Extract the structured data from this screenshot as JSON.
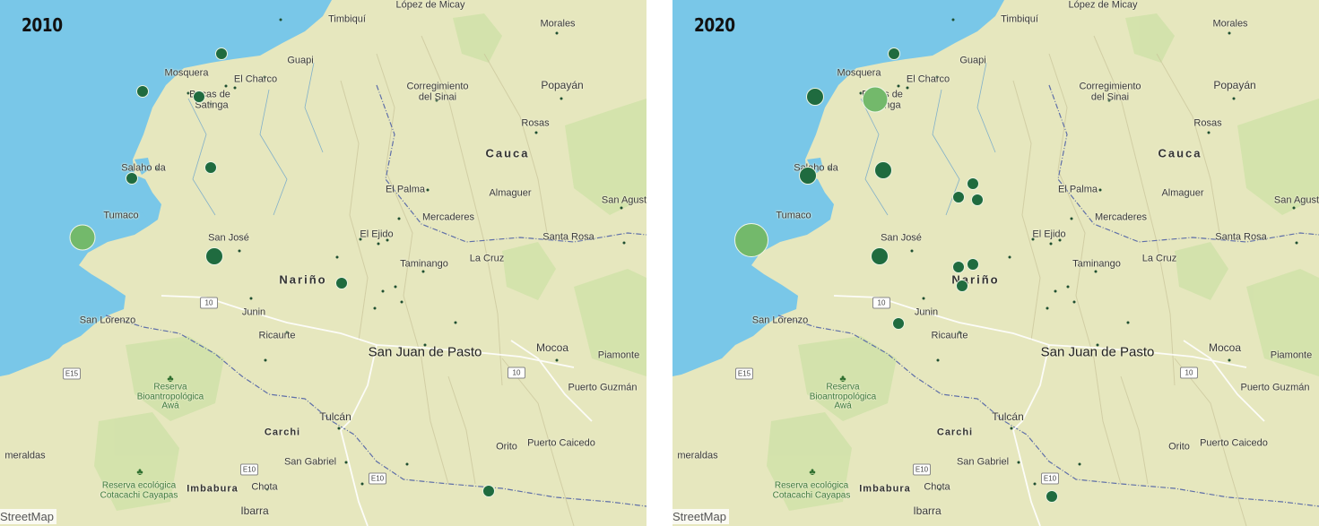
{
  "panels": [
    {
      "year": "2010",
      "attribution": "StreetMap",
      "bubbles": [
        {
          "lon": -78.16,
          "lat": 2.38,
          "size": 1,
          "tone": "dark"
        },
        {
          "lon": -78.37,
          "lat": 2.24,
          "size": 1,
          "tone": "dark"
        },
        {
          "lon": -78.22,
          "lat": 2.22,
          "size": 1,
          "tone": "dark"
        },
        {
          "lon": -78.4,
          "lat": 1.92,
          "size": 1,
          "tone": "dark"
        },
        {
          "lon": -78.19,
          "lat": 1.96,
          "size": 1,
          "tone": "dark"
        },
        {
          "lon": -78.53,
          "lat": 1.7,
          "size": 3,
          "tone": "light"
        },
        {
          "lon": -78.18,
          "lat": 1.63,
          "size": 2,
          "tone": "dark"
        },
        {
          "lon": -77.84,
          "lat": 1.53,
          "size": 1,
          "tone": "dark"
        },
        {
          "lon": -77.45,
          "lat": 0.76,
          "size": 1,
          "tone": "dark"
        }
      ]
    },
    {
      "year": "2020",
      "attribution": "StreetMap",
      "bubbles": [
        {
          "lon": -78.16,
          "lat": 2.38,
          "size": 1,
          "tone": "dark"
        },
        {
          "lon": -78.37,
          "lat": 2.22,
          "size": 2,
          "tone": "dark"
        },
        {
          "lon": -78.21,
          "lat": 2.21,
          "size": 3,
          "tone": "light"
        },
        {
          "lon": -78.39,
          "lat": 1.93,
          "size": 2,
          "tone": "dark"
        },
        {
          "lon": -78.19,
          "lat": 1.95,
          "size": 2,
          "tone": "dark"
        },
        {
          "lon": -78.54,
          "lat": 1.69,
          "size": 4,
          "tone": "light"
        },
        {
          "lon": -78.2,
          "lat": 1.63,
          "size": 2,
          "tone": "dark"
        },
        {
          "lon": -77.95,
          "lat": 1.9,
          "size": 1,
          "tone": "dark"
        },
        {
          "lon": -77.94,
          "lat": 1.84,
          "size": 1,
          "tone": "dark"
        },
        {
          "lon": -77.99,
          "lat": 1.85,
          "size": 1,
          "tone": "dark"
        },
        {
          "lon": -77.99,
          "lat": 1.59,
          "size": 1,
          "tone": "dark"
        },
        {
          "lon": -77.98,
          "lat": 1.52,
          "size": 1,
          "tone": "dark"
        },
        {
          "lon": -77.95,
          "lat": 1.6,
          "size": 1,
          "tone": "dark"
        },
        {
          "lon": -78.15,
          "lat": 1.38,
          "size": 1,
          "tone": "dark"
        },
        {
          "lon": -77.74,
          "lat": 0.74,
          "size": 1,
          "tone": "dark"
        }
      ]
    }
  ],
  "map_labels": {
    "timbiqui": "Timbiquí",
    "lopez": "López de Micay",
    "morales": "Morales",
    "mosquera": "Mosquera",
    "guapi": "Guapi",
    "el_charco": "El Charco",
    "bocas": "Bocas de",
    "satinga": "Satinga",
    "corregimiento": "Corregimiento",
    "sinai": "del Sinai",
    "popayan": "Popayán",
    "rosas": "Rosas",
    "cauca": "Cauca",
    "salahonda": "Salaho da",
    "el_palmar": "El Palma",
    "almaguer": "Almaguer",
    "san_agustin": "San Agust",
    "tumaco": "Tumaco",
    "mercaderes": "Mercaderes",
    "el_ejido": "El Ejido",
    "san_jose": "San José",
    "santa_rosa": "Santa Rosa",
    "taminango": "Taminango",
    "la_cruz": "La Cruz",
    "narino": "Nariño",
    "junin": "Junin",
    "san_lorenzo": "San Lorenzo",
    "ricaurte": "Ricaurte",
    "pasto": "San Juan de Pasto",
    "mocoa": "Mocoa",
    "piamonte": "Piamonte",
    "puerto_guzman": "Puerto Guzmán",
    "reserva1": "Reserva Bioantropológica Awá",
    "tulcan": "Tulcán",
    "carchi": "Carchi",
    "orito": "Orito",
    "puerto_caicedo": "Puerto Caicedo",
    "esmeraldas": "meraldas",
    "san_gabriel": "San Gabriel",
    "reserva2": "Reserva ecológica Cotacachi Cayapas",
    "imbabura": "Imbabura",
    "chota": "Chota",
    "ibarra": "Ibarra",
    "route_10a": "10",
    "route_10b": "10",
    "e15": "E15",
    "e10": "E10",
    "e10b": "E10"
  },
  "colors": {
    "ocean": "#79c7e8",
    "land": "#e6e7be",
    "bubble_dark": "#1f6b3f",
    "bubble_light": "#73b96b"
  }
}
